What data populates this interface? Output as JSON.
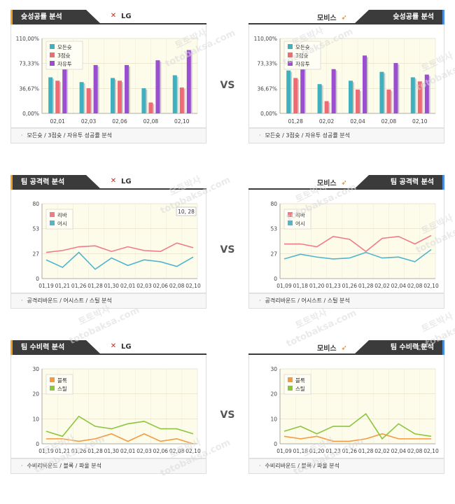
{
  "vs_label": "VS",
  "team_left": "LG",
  "team_right": "모비스",
  "colors": {
    "teal": "#3fb0c0",
    "red": "#ee6b75",
    "purple": "#9b4fd0",
    "line_red": "#f07b88",
    "line_blue": "#4fb6ce",
    "orange": "#f59a40",
    "green": "#8cc63f",
    "plot_bg": "#fdfbe9"
  },
  "panels": [
    {
      "title": "슛성공률 분석",
      "team": "LG",
      "side": "left",
      "footer": "모든슛 / 3점슛 / 자유투 성공률 분석",
      "chart_data": {
        "type": "bar",
        "categories": [
          "02,01",
          "02,03",
          "02,06",
          "02,08",
          "02,10"
        ],
        "ylim": [
          0,
          110
        ],
        "yticks": [
          "0,00%",
          "36,67%",
          "73,33%",
          "110,00%"
        ],
        "series": [
          {
            "name": "모든슛",
            "values": [
              53,
              46,
              52,
              37,
              56
            ]
          },
          {
            "name": "3점슛",
            "values": [
              48,
              37,
              48,
              16,
              38
            ]
          },
          {
            "name": "자유투",
            "values": [
              72,
              71,
              71,
              78,
              93
            ]
          }
        ]
      }
    },
    {
      "title": "슛성공률 분석",
      "team": "모비스",
      "side": "right",
      "footer": "모든슛 / 3점슛 / 자유투 성공률 분석",
      "chart_data": {
        "type": "bar",
        "categories": [
          "01,28",
          "02,02",
          "02,04",
          "02,08",
          "02,10"
        ],
        "ylim": [
          0,
          110
        ],
        "yticks": [
          "0,00%",
          "36,67%",
          "73,33%",
          "110,00%"
        ],
        "series": [
          {
            "name": "모든슛",
            "values": [
              63,
              43,
              48,
              61,
              53
            ]
          },
          {
            "name": "3점슛",
            "values": [
              52,
              18,
              35,
              35,
              47
            ]
          },
          {
            "name": "자유투",
            "values": [
              68,
              65,
              85,
              74,
              57
            ]
          }
        ]
      }
    },
    {
      "title": "팀 공격력 분석",
      "team": "LG",
      "side": "left",
      "footer": "공격리바운드 / 어시스트 / 스틸 분석",
      "tooltip": "10, 28",
      "chart_data": {
        "type": "line",
        "categories": [
          "01,19",
          "01,21",
          "01,26",
          "01,28",
          "01,30",
          "02,01",
          "02,03",
          "02,06",
          "02,08",
          "02,10"
        ],
        "ylim": [
          0,
          80
        ],
        "yticks": [
          "0",
          "27",
          "53",
          "80"
        ],
        "series": [
          {
            "name": "리바",
            "values": [
              28,
              30,
              34,
              35,
              29,
              34,
              30,
              29,
              38,
              33
            ]
          },
          {
            "name": "어시",
            "values": [
              20,
              12,
              28,
              10,
              22,
              14,
              20,
              18,
              13,
              23
            ]
          }
        ]
      }
    },
    {
      "title": "팀 공격력 분석",
      "team": "모비스",
      "side": "right",
      "footer": "공격리바운드 / 어시스트 / 스틸 분석",
      "chart_data": {
        "type": "line",
        "categories": [
          "01,09",
          "01,18",
          "01,20",
          "01,23",
          "01,26",
          "01,28",
          "02,02",
          "02,04",
          "02,08",
          "02,10"
        ],
        "ylim": [
          0,
          80
        ],
        "yticks": [
          "0",
          "27",
          "53",
          "80"
        ],
        "series": [
          {
            "name": "리바",
            "values": [
              37,
              37,
              34,
              45,
              42,
              29,
              43,
              45,
              37,
              46
            ]
          },
          {
            "name": "어시",
            "values": [
              21,
              26,
              23,
              21,
              22,
              28,
              22,
              23,
              18,
              31
            ]
          }
        ]
      }
    },
    {
      "title": "팀 수비력 분석",
      "team": "LG",
      "side": "left",
      "footer": "수비리바운드 / 블록 / 파울 분석",
      "chart_data": {
        "type": "line",
        "categories": [
          "01,19",
          "01,21",
          "01,26",
          "01,28",
          "01,30",
          "02,01",
          "02,03",
          "02,06",
          "02,08",
          "02,10"
        ],
        "ylim": [
          0,
          30
        ],
        "yticks": [
          "0",
          "10",
          "20",
          "30"
        ],
        "series": [
          {
            "name": "블록",
            "values": [
              2,
              2,
              1,
              2,
              4,
              1,
              4,
              1,
              2,
              0
            ]
          },
          {
            "name": "스틸",
            "values": [
              5,
              3,
              11,
              7,
              6,
              8,
              9,
              6,
              6,
              4
            ]
          }
        ]
      }
    },
    {
      "title": "팀 수비력 분석",
      "team": "모비스",
      "side": "right",
      "footer": "수비리바운드 / 블록 / 파울 분석",
      "chart_data": {
        "type": "line",
        "categories": [
          "01,09",
          "01,18",
          "01,20",
          "01,23",
          "01,26",
          "01,28",
          "02,02",
          "02,04",
          "02,08",
          "02,10"
        ],
        "ylim": [
          0,
          30
        ],
        "yticks": [
          "0",
          "10",
          "20",
          "30"
        ],
        "series": [
          {
            "name": "블록",
            "values": [
              3,
              2,
              3,
              1,
              1,
              2,
              4,
              2,
              2,
              2
            ]
          },
          {
            "name": "스틸",
            "values": [
              5,
              7,
              4,
              7,
              7,
              12,
              2,
              8,
              4,
              3
            ]
          }
        ]
      }
    }
  ],
  "watermark": [
    "토토박사",
    "totobaksa.com"
  ]
}
